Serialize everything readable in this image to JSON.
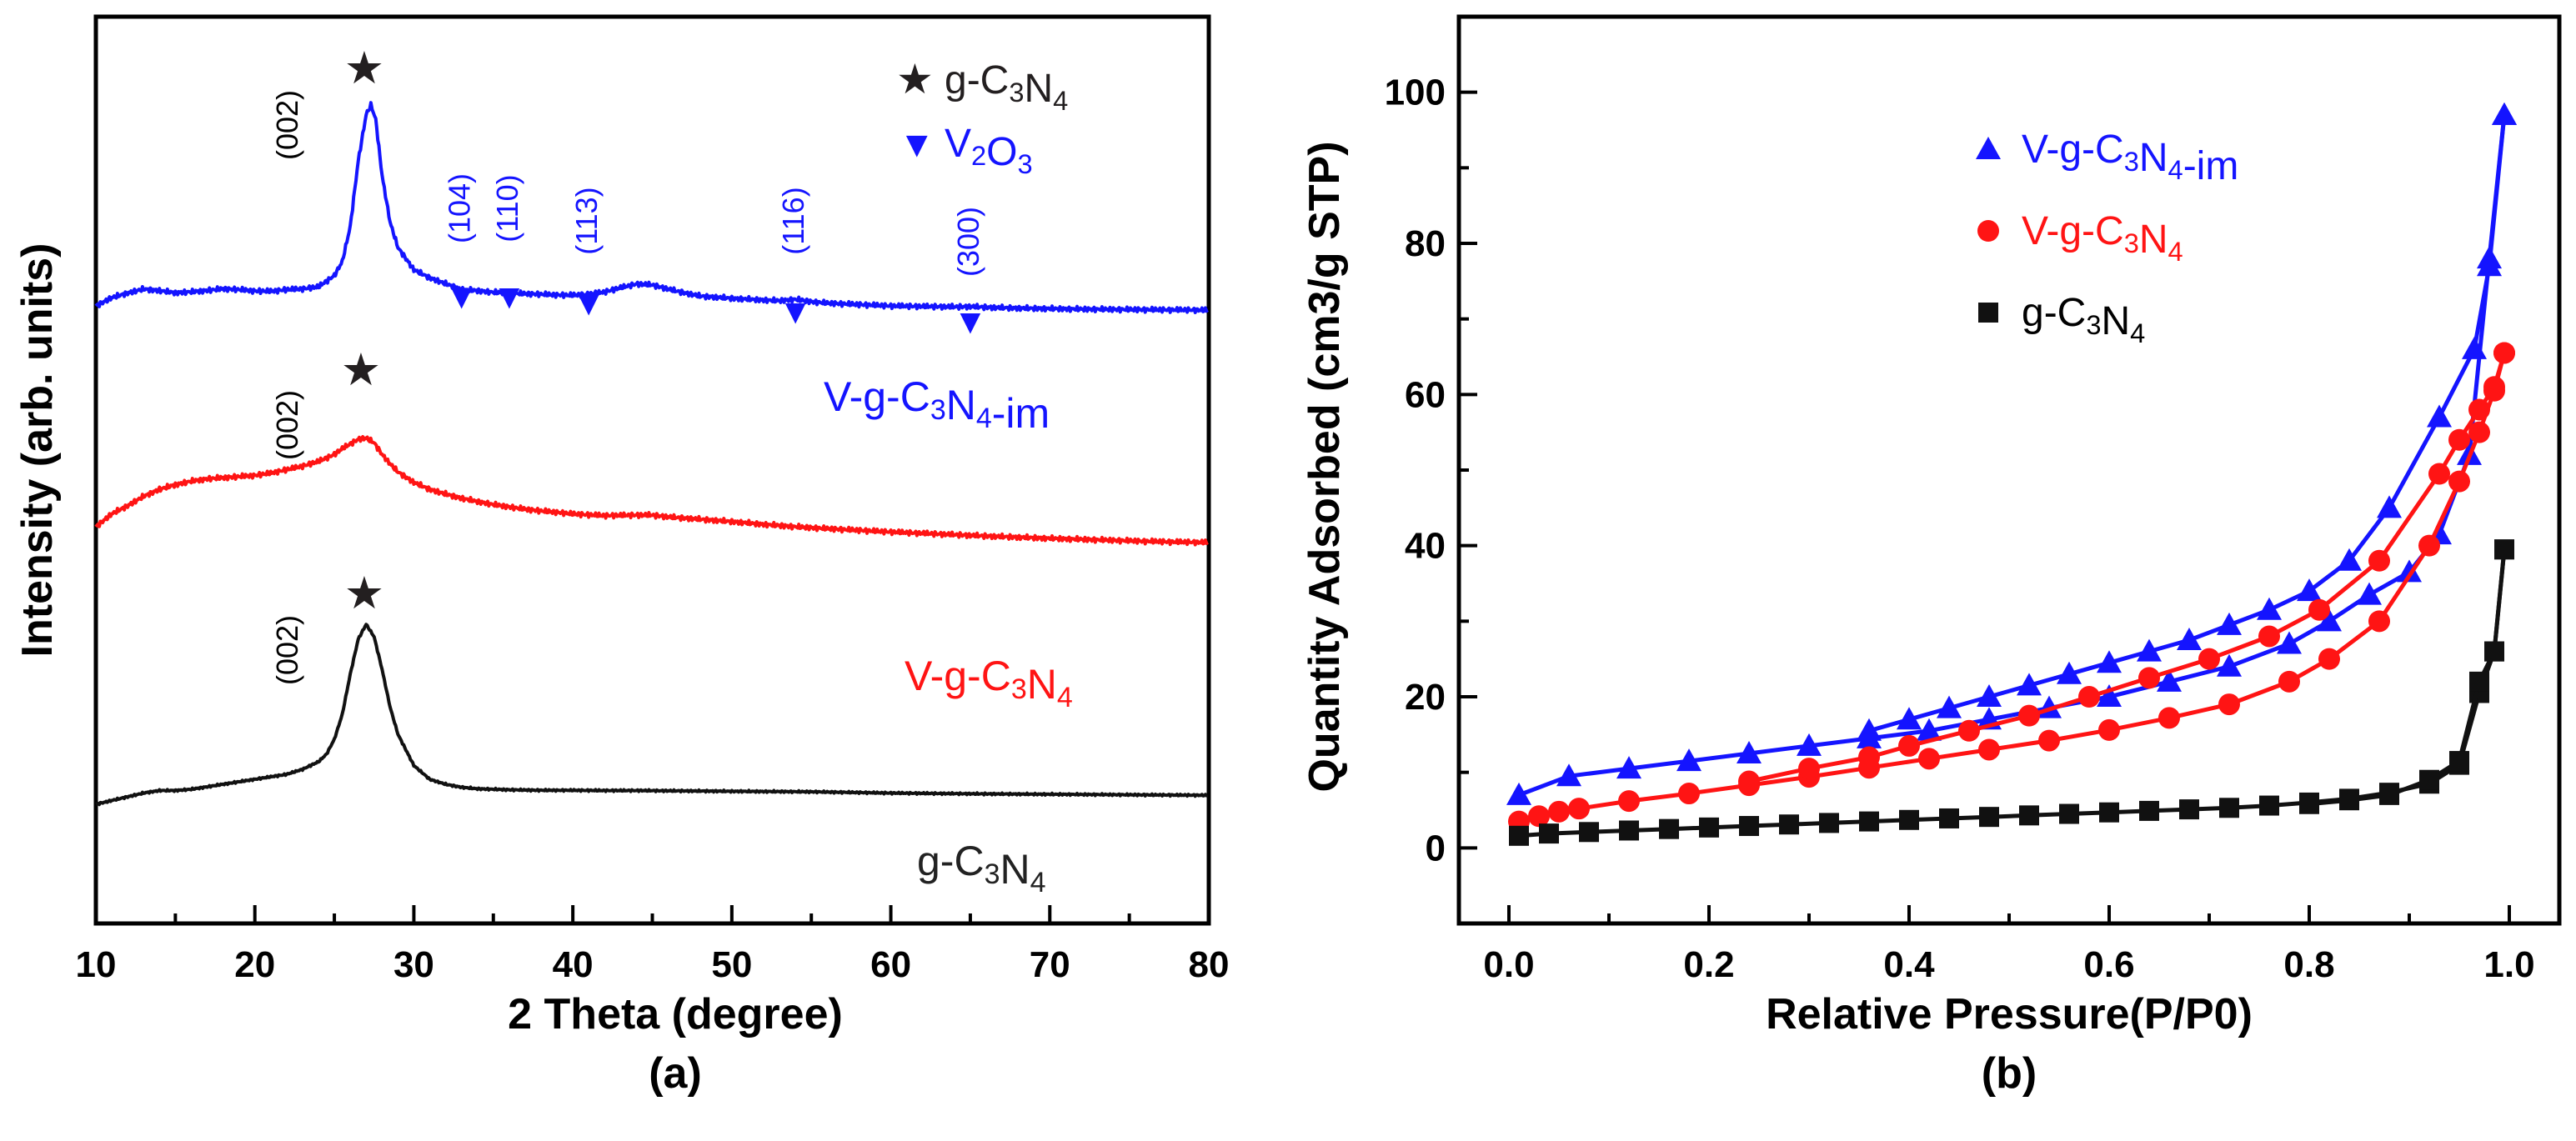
{
  "chart_data": [
    {
      "panel": "(a)",
      "type": "line",
      "xlabel": "2 Theta (degree)",
      "ylabel": "Intensity (arb. units)",
      "xlim": [
        10,
        80
      ],
      "xticks": [
        10,
        20,
        30,
        40,
        50,
        60,
        70,
        80
      ],
      "yticks": [],
      "legend_position": "top-right",
      "legend": [
        {
          "symbol": "★",
          "text": "g-C3N4",
          "color": "#231f20"
        },
        {
          "symbol": "▼",
          "text": "V2O3",
          "color": "#1414ff"
        }
      ],
      "series": [
        {
          "name": "V-g-C3N4-im",
          "color": "#1414ff",
          "x": [
            10,
            11,
            12,
            13,
            14,
            15,
            16,
            17,
            18,
            19,
            20,
            21,
            22,
            23,
            24,
            25,
            25.5,
            26,
            26.5,
            27,
            27.3,
            27.6,
            28,
            28.5,
            29,
            30,
            31,
            32,
            33,
            34,
            35,
            36,
            37,
            38,
            39,
            40,
            41,
            42,
            43,
            44,
            45,
            46,
            47,
            48,
            50,
            52,
            53,
            54,
            55,
            56,
            58,
            60,
            62,
            64,
            65,
            66,
            68,
            70,
            72,
            74,
            76,
            78,
            80
          ],
          "y": [
            1.0,
            1.35,
            1.55,
            1.72,
            1.65,
            1.56,
            1.6,
            1.66,
            1.73,
            1.7,
            1.64,
            1.63,
            1.7,
            1.73,
            1.82,
            2.3,
            2.9,
            4.4,
            7.2,
            9.2,
            9.6,
            9.0,
            6.6,
            4.6,
            3.5,
            2.55,
            2.2,
            1.95,
            1.7,
            1.65,
            1.58,
            1.55,
            1.52,
            1.5,
            1.47,
            1.46,
            1.5,
            1.6,
            1.78,
            1.94,
            1.9,
            1.72,
            1.56,
            1.42,
            1.32,
            1.25,
            1.22,
            1.28,
            1.18,
            1.12,
            1.06,
            1.0,
            0.98,
            0.96,
            0.97,
            0.94,
            0.9,
            0.88,
            0.86,
            0.85,
            0.84,
            0.83,
            0.82
          ]
        },
        {
          "name": "V-g-C3N4",
          "color": "#ff1414",
          "x": [
            10,
            11,
            12,
            13,
            14,
            15,
            16,
            17,
            18,
            19,
            20,
            21,
            22,
            23,
            24,
            25,
            25.5,
            26,
            26.5,
            27,
            27.5,
            28,
            28.5,
            29,
            30,
            31,
            32,
            33,
            34,
            35,
            36,
            37,
            38,
            39,
            40,
            42,
            44,
            45,
            46,
            48,
            50,
            52,
            54,
            56,
            58,
            60,
            62,
            64,
            66,
            68,
            70,
            72,
            74,
            76,
            78,
            80
          ],
          "y": [
            1.0,
            1.55,
            1.9,
            2.3,
            2.6,
            2.8,
            2.95,
            3.05,
            3.1,
            3.15,
            3.2,
            3.3,
            3.45,
            3.6,
            3.8,
            4.1,
            4.35,
            4.55,
            4.75,
            4.8,
            4.6,
            4.1,
            3.7,
            3.35,
            2.9,
            2.6,
            2.4,
            2.22,
            2.08,
            1.95,
            1.85,
            1.75,
            1.68,
            1.62,
            1.55,
            1.48,
            1.5,
            1.5,
            1.42,
            1.32,
            1.22,
            1.1,
            1.0,
            0.92,
            0.85,
            0.78,
            0.72,
            0.66,
            0.6,
            0.55,
            0.5,
            0.46,
            0.42,
            0.38,
            0.35,
            0.33
          ]
        },
        {
          "name": "g-C3N4",
          "color": "#111111",
          "x": [
            10,
            11,
            12,
            13,
            14,
            15,
            16,
            17,
            18,
            19,
            20,
            21,
            22,
            23,
            24,
            24.5,
            25,
            25.5,
            26,
            26.5,
            27,
            27.5,
            28,
            28.5,
            29,
            30,
            31,
            32,
            33,
            34,
            35,
            36,
            38,
            40,
            42,
            44,
            46,
            48,
            50,
            55,
            60,
            65,
            70,
            75,
            80
          ],
          "y": [
            0.0,
            0.15,
            0.3,
            0.45,
            0.55,
            0.55,
            0.6,
            0.7,
            0.8,
            0.9,
            1.0,
            1.1,
            1.2,
            1.4,
            1.7,
            2.0,
            2.6,
            3.6,
            5.2,
            6.6,
            7.2,
            6.7,
            5.4,
            3.9,
            2.8,
            1.55,
            1.0,
            0.8,
            0.68,
            0.62,
            0.6,
            0.58,
            0.56,
            0.56,
            0.55,
            0.55,
            0.54,
            0.53,
            0.52,
            0.5,
            0.45,
            0.42,
            0.4,
            0.38,
            0.36
          ]
        }
      ],
      "series_labels": [
        {
          "text": "V-g-C3N4-im",
          "color": "#1414ff"
        },
        {
          "text": "V-g-C3N4",
          "color": "#ff1414"
        },
        {
          "text": "g-C3N4",
          "color": "#222222"
        }
      ],
      "peak_labels": [
        "(002)",
        "(002)",
        "(002)"
      ],
      "v2o3_peaks": [
        {
          "two_theta": 33,
          "label": "(104)"
        },
        {
          "two_theta": 36,
          "label": "(110)"
        },
        {
          "two_theta": 41,
          "label": "(113)"
        },
        {
          "two_theta": 54,
          "label": "(116)"
        },
        {
          "two_theta": 65,
          "label": "(300)"
        }
      ]
    },
    {
      "panel": "(b)",
      "type": "line",
      "xlabel": "Relative Pressure(P/P0)",
      "ylabel": "Quantity Adsorbed (cm3/g STP)",
      "xlim": [
        -0.05,
        1.05
      ],
      "ylim": [
        -10,
        110
      ],
      "xticks": [
        0.0,
        0.2,
        0.4,
        0.6,
        0.8,
        1.0
      ],
      "xticklabels": [
        "0.0",
        "0.2",
        "0.4",
        "0.6",
        "0.8",
        "1.0"
      ],
      "yticks": [
        0,
        20,
        40,
        60,
        80,
        100
      ],
      "legend_position": "top-right",
      "legend": [
        {
          "text": "V-g-C3N4-im",
          "color": "#1414ff",
          "marker": "triangle"
        },
        {
          "text": "V-g-C3N4",
          "color": "#ff1414",
          "marker": "circle"
        },
        {
          "text": "g-C3N4",
          "color": "#111111",
          "marker": "square"
        }
      ],
      "series": [
        {
          "name": "V-g-C3N4-im adsorption",
          "color": "#1414ff",
          "marker": "triangle",
          "x": [
            0.01,
            0.06,
            0.12,
            0.18,
            0.24,
            0.3,
            0.36,
            0.42,
            0.48,
            0.54,
            0.6,
            0.66,
            0.72,
            0.78,
            0.82,
            0.86,
            0.9,
            0.93,
            0.96,
            0.98,
            0.995
          ],
          "y": [
            7.0,
            9.5,
            10.5,
            11.5,
            12.5,
            13.5,
            14.5,
            15.5,
            17.0,
            18.5,
            20.0,
            22.0,
            24.0,
            27.0,
            30.0,
            33.5,
            36.5,
            41.5,
            52.0,
            78.0,
            97.0
          ]
        },
        {
          "name": "V-g-C3N4-im desorption",
          "color": "#1414ff",
          "marker": "triangle",
          "x": [
            0.995,
            0.98,
            0.965,
            0.93,
            0.88,
            0.84,
            0.8,
            0.76,
            0.72,
            0.68,
            0.64,
            0.6,
            0.56,
            0.52,
            0.48,
            0.44,
            0.4,
            0.36
          ],
          "y": [
            97.0,
            77.0,
            66.0,
            57.0,
            45.0,
            38.0,
            34.0,
            31.5,
            29.5,
            27.5,
            26.0,
            24.5,
            23.0,
            21.5,
            20.0,
            18.5,
            17.0,
            15.5
          ]
        },
        {
          "name": "V-g-C3N4 adsorption",
          "color": "#ff1414",
          "marker": "circle",
          "x": [
            0.01,
            0.03,
            0.05,
            0.07,
            0.12,
            0.18,
            0.24,
            0.3,
            0.36,
            0.42,
            0.48,
            0.54,
            0.6,
            0.66,
            0.72,
            0.78,
            0.82,
            0.87,
            0.92,
            0.95,
            0.97,
            0.985,
            0.995
          ],
          "y": [
            3.5,
            4.2,
            4.8,
            5.2,
            6.2,
            7.2,
            8.3,
            9.4,
            10.6,
            11.8,
            13.0,
            14.2,
            15.6,
            17.2,
            19.0,
            22.0,
            25.0,
            30.0,
            40.0,
            48.5,
            55.0,
            60.5,
            65.5
          ]
        },
        {
          "name": "V-g-C3N4 desorption",
          "color": "#ff1414",
          "marker": "circle",
          "x": [
            0.995,
            0.985,
            0.97,
            0.95,
            0.93,
            0.87,
            0.81,
            0.76,
            0.7,
            0.64,
            0.58,
            0.52,
            0.46,
            0.4,
            0.36,
            0.3,
            0.24
          ],
          "y": [
            65.5,
            61.0,
            58.0,
            54.0,
            49.5,
            38.0,
            31.5,
            28.0,
            25.0,
            22.5,
            20.0,
            17.5,
            15.5,
            13.5,
            12.0,
            10.5,
            8.8
          ]
        },
        {
          "name": "g-C3N4 adsorption",
          "color": "#111111",
          "marker": "square",
          "x": [
            0.01,
            0.04,
            0.08,
            0.12,
            0.16,
            0.2,
            0.24,
            0.28,
            0.32,
            0.36,
            0.4,
            0.44,
            0.48,
            0.52,
            0.56,
            0.6,
            0.64,
            0.68,
            0.72,
            0.76,
            0.8,
            0.84,
            0.88,
            0.92,
            0.95,
            0.97,
            0.985,
            0.995
          ],
          "y": [
            1.6,
            1.9,
            2.1,
            2.3,
            2.5,
            2.7,
            2.9,
            3.1,
            3.3,
            3.5,
            3.7,
            3.9,
            4.1,
            4.3,
            4.5,
            4.7,
            4.9,
            5.1,
            5.3,
            5.6,
            6.0,
            6.5,
            7.3,
            8.5,
            11.0,
            20.5,
            26.0,
            39.5
          ]
        },
        {
          "name": "g-C3N4 desorption",
          "color": "#111111",
          "marker": "square",
          "x": [
            0.995,
            0.985,
            0.97,
            0.95,
            0.92,
            0.88,
            0.84,
            0.8
          ],
          "y": [
            39.5,
            26.0,
            22.0,
            11.5,
            9.0,
            7.0,
            6.3,
            5.8
          ]
        }
      ]
    }
  ],
  "captions": {
    "a": "(a)",
    "b": "(b)"
  }
}
